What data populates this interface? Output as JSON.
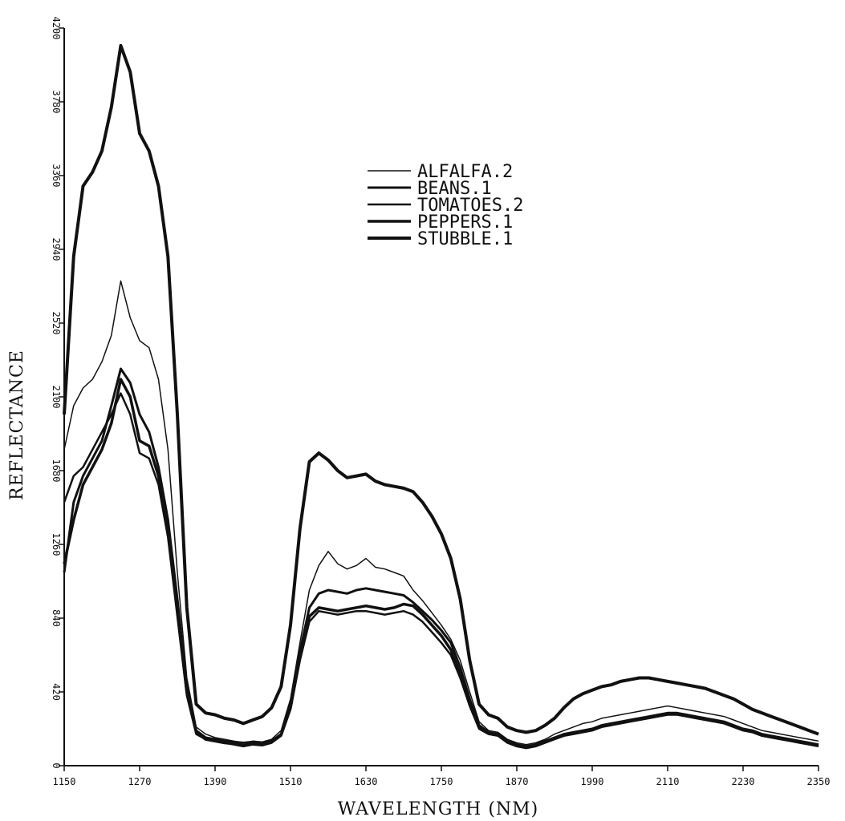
{
  "chart_data": {
    "type": "line",
    "xlabel": "WAVELENGTH (NM)",
    "ylabel": "REFLECTANCE",
    "xlim": [
      1150,
      2350
    ],
    "ylim": [
      0,
      4200
    ],
    "xticks": [
      "1150",
      "1270",
      "1390",
      "1510",
      "1630",
      "1750",
      "1870",
      "1990",
      "2110",
      "2230",
      "2350"
    ],
    "yticks": [
      "0",
      "420",
      "840",
      "1260",
      "1680",
      "2100",
      "2520",
      "2940",
      "3360",
      "3780",
      "4200"
    ],
    "grid": false,
    "legend_position": "upper-center",
    "series": [
      {
        "name": "ALFALFA.2",
        "x": [
          1150,
          1165,
          1180,
          1195,
          1210,
          1225,
          1240,
          1255,
          1270,
          1285,
          1300,
          1315,
          1330,
          1345,
          1360,
          1375,
          1390,
          1405,
          1420,
          1435,
          1450,
          1465,
          1480,
          1495,
          1510,
          1525,
          1540,
          1555,
          1570,
          1585,
          1600,
          1615,
          1630,
          1645,
          1660,
          1675,
          1690,
          1705,
          1720,
          1735,
          1750,
          1765,
          1780,
          1795,
          1810,
          1825,
          1840,
          1855,
          1870,
          1885,
          1900,
          1915,
          1930,
          1945,
          1960,
          1975,
          1990,
          2005,
          2020,
          2035,
          2050,
          2065,
          2080,
          2095,
          2110,
          2125,
          2140,
          2155,
          2170,
          2185,
          2200,
          2215,
          2230,
          2245,
          2260,
          2275,
          2290,
          2305,
          2320,
          2335,
          2350
        ],
        "y": [
          1800,
          2050,
          2150,
          2200,
          2300,
          2450,
          2760,
          2550,
          2420,
          2380,
          2200,
          1800,
          1100,
          500,
          220,
          180,
          160,
          150,
          140,
          130,
          140,
          135,
          150,
          200,
          380,
          700,
          1000,
          1140,
          1220,
          1150,
          1120,
          1140,
          1180,
          1130,
          1120,
          1100,
          1080,
          1000,
          940,
          870,
          800,
          720,
          600,
          420,
          250,
          200,
          190,
          150,
          130,
          120,
          130,
          150,
          180,
          200,
          220,
          240,
          250,
          270,
          280,
          290,
          300,
          310,
          320,
          330,
          340,
          330,
          320,
          310,
          300,
          290,
          280,
          260,
          240,
          220,
          200,
          190,
          180,
          170,
          160,
          150,
          140
        ]
      },
      {
        "name": "BEANS.1",
        "x": [
          1150,
          1165,
          1180,
          1195,
          1210,
          1225,
          1240,
          1255,
          1270,
          1285,
          1300,
          1315,
          1330,
          1345,
          1360,
          1375,
          1390,
          1405,
          1420,
          1435,
          1450,
          1465,
          1480,
          1495,
          1510,
          1525,
          1540,
          1555,
          1570,
          1585,
          1600,
          1615,
          1630,
          1645,
          1660,
          1675,
          1690,
          1705,
          1720,
          1735,
          1750,
          1765,
          1780,
          1795,
          1810,
          1825,
          1840,
          1855,
          1870,
          1885,
          1900,
          1915,
          1930,
          1945,
          1960,
          1975,
          1990,
          2005,
          2020,
          2035,
          2050,
          2065,
          2080,
          2095,
          2110,
          2125,
          2140,
          2155,
          2170,
          2185,
          2200,
          2215,
          2230,
          2245,
          2260,
          2275,
          2290,
          2305,
          2320,
          2335,
          2350
        ],
        "y": [
          1100,
          1500,
          1650,
          1750,
          1850,
          2050,
          2260,
          2180,
          2000,
          1900,
          1700,
          1400,
          950,
          450,
          200,
          160,
          150,
          140,
          135,
          130,
          135,
          130,
          140,
          180,
          350,
          650,
          900,
          980,
          1000,
          990,
          980,
          1000,
          1010,
          1000,
          990,
          980,
          970,
          930,
          880,
          830,
          770,
          700,
          560,
          380,
          230,
          190,
          180,
          140,
          120,
          110,
          120,
          140,
          160,
          180,
          190,
          200,
          210,
          230,
          240,
          250,
          260,
          270,
          280,
          290,
          300,
          300,
          290,
          280,
          270,
          260,
          250,
          230,
          210,
          200,
          180,
          170,
          160,
          150,
          140,
          130,
          120
        ]
      },
      {
        "name": "TOMATOES.2",
        "x": [
          1150,
          1165,
          1180,
          1195,
          1210,
          1225,
          1240,
          1255,
          1270,
          1285,
          1300,
          1315,
          1330,
          1345,
          1360,
          1375,
          1390,
          1405,
          1420,
          1435,
          1450,
          1465,
          1480,
          1495,
          1510,
          1525,
          1540,
          1555,
          1570,
          1585,
          1600,
          1615,
          1630,
          1645,
          1660,
          1675,
          1690,
          1705,
          1720,
          1735,
          1750,
          1765,
          1780,
          1795,
          1810,
          1825,
          1840,
          1855,
          1870,
          1885,
          1900,
          1915,
          1930,
          1945,
          1960,
          1975,
          1990,
          2005,
          2020,
          2035,
          2050,
          2065,
          2080,
          2095,
          2110,
          2125,
          2140,
          2155,
          2170,
          2185,
          2200,
          2215,
          2230,
          2245,
          2260,
          2275,
          2290,
          2305,
          2320,
          2335,
          2350
        ],
        "y": [
          1500,
          1650,
          1700,
          1800,
          1900,
          2000,
          2120,
          2000,
          1780,
          1750,
          1600,
          1300,
          850,
          400,
          180,
          150,
          140,
          130,
          120,
          110,
          120,
          115,
          130,
          170,
          320,
          600,
          820,
          880,
          870,
          860,
          870,
          880,
          880,
          870,
          860,
          870,
          880,
          860,
          820,
          760,
          700,
          630,
          500,
          340,
          210,
          180,
          170,
          130,
          110,
          100,
          110,
          130,
          150,
          170,
          180,
          190,
          200,
          220,
          230,
          240,
          250,
          260,
          270,
          280,
          290,
          290,
          280,
          270,
          260,
          250,
          240,
          220,
          200,
          190,
          170,
          160,
          150,
          140,
          130,
          120,
          110
        ]
      },
      {
        "name": "PEPPERS.1",
        "x": [
          1150,
          1165,
          1180,
          1195,
          1210,
          1225,
          1240,
          1255,
          1270,
          1285,
          1300,
          1315,
          1330,
          1345,
          1360,
          1375,
          1390,
          1405,
          1420,
          1435,
          1450,
          1465,
          1480,
          1495,
          1510,
          1525,
          1540,
          1555,
          1570,
          1585,
          1600,
          1615,
          1630,
          1645,
          1660,
          1675,
          1690,
          1705,
          1720,
          1735,
          1750,
          1765,
          1780,
          1795,
          1810,
          1825,
          1840,
          1855,
          1870,
          1885,
          1900,
          1915,
          1930,
          1945,
          1960,
          1975,
          1990,
          2005,
          2020,
          2035,
          2050,
          2065,
          2080,
          2095,
          2110,
          2125,
          2140,
          2155,
          2170,
          2185,
          2200,
          2215,
          2230,
          2245,
          2260,
          2275,
          2290,
          2305,
          2320,
          2335,
          2350
        ],
        "y": [
          1150,
          1400,
          1600,
          1700,
          1800,
          1950,
          2200,
          2100,
          1850,
          1820,
          1650,
          1350,
          880,
          420,
          190,
          150,
          140,
          130,
          125,
          115,
          125,
          120,
          135,
          175,
          330,
          620,
          850,
          900,
          890,
          880,
          890,
          900,
          910,
          900,
          890,
          900,
          920,
          910,
          860,
          800,
          740,
          660,
          520,
          350,
          220,
          185,
          175,
          135,
          115,
          105,
          115,
          135,
          155,
          175,
          185,
          195,
          205,
          225,
          235,
          245,
          255,
          265,
          275,
          285,
          295,
          295,
          285,
          275,
          265,
          255,
          245,
          225,
          205,
          195,
          175,
          165,
          155,
          145,
          135,
          125,
          115
        ]
      },
      {
        "name": "STUBBLE.1",
        "x": [
          1150,
          1165,
          1180,
          1195,
          1210,
          1225,
          1240,
          1255,
          1270,
          1285,
          1300,
          1315,
          1330,
          1345,
          1360,
          1375,
          1390,
          1405,
          1420,
          1435,
          1450,
          1465,
          1480,
          1495,
          1510,
          1525,
          1540,
          1555,
          1570,
          1585,
          1600,
          1615,
          1630,
          1645,
          1660,
          1675,
          1690,
          1705,
          1720,
          1735,
          1750,
          1765,
          1780,
          1795,
          1810,
          1825,
          1840,
          1855,
          1870,
          1885,
          1900,
          1915,
          1930,
          1945,
          1960,
          1975,
          1990,
          2005,
          2020,
          2035,
          2050,
          2065,
          2080,
          2095,
          2110,
          2125,
          2140,
          2155,
          2170,
          2185,
          2200,
          2215,
          2230,
          2245,
          2260,
          2275,
          2290,
          2305,
          2320,
          2335,
          2350
        ],
        "y": [
          2000,
          2900,
          3300,
          3380,
          3500,
          3750,
          4100,
          3950,
          3600,
          3500,
          3300,
          2900,
          2000,
          900,
          350,
          300,
          290,
          270,
          260,
          240,
          260,
          280,
          330,
          450,
          800,
          1350,
          1730,
          1780,
          1740,
          1680,
          1640,
          1650,
          1660,
          1620,
          1600,
          1590,
          1580,
          1560,
          1500,
          1420,
          1320,
          1180,
          950,
          600,
          350,
          290,
          270,
          220,
          200,
          190,
          200,
          230,
          270,
          330,
          380,
          410,
          430,
          450,
          460,
          480,
          490,
          500,
          500,
          490,
          480,
          470,
          460,
          450,
          440,
          420,
          400,
          380,
          350,
          320,
          300,
          280,
          260,
          240,
          220,
          200,
          180
        ]
      }
    ]
  }
}
